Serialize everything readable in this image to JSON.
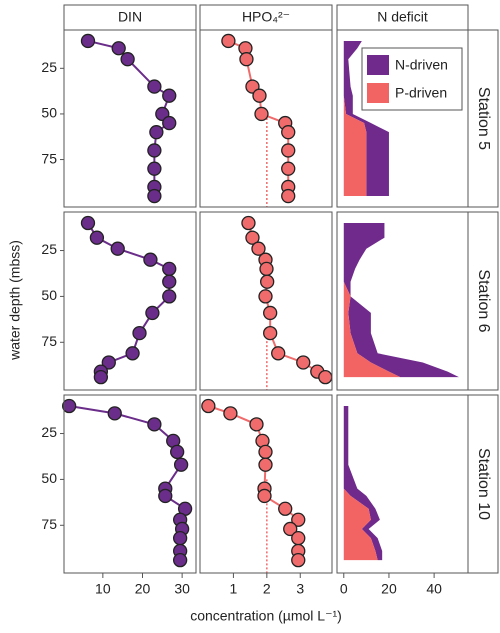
{
  "chart_data": {
    "type": "profile",
    "x_label": "concentration (µmol L⁻¹)",
    "y_label": "water depth (mbss)",
    "ylim": [
      4,
      101
    ],
    "yticks": [
      25,
      50,
      75
    ],
    "y_inverted": true,
    "columns": [
      {
        "title": "DIN",
        "xlim": [
          0.2,
          33.5
        ],
        "xticks": [
          10,
          20,
          30
        ],
        "color": "#6b2d8a"
      },
      {
        "title": "HPO₄²⁻",
        "xlim": [
          0,
          3.95
        ],
        "xticks": [
          1,
          2,
          3
        ],
        "color": "#f06b6b",
        "ref_x": 2
      },
      {
        "title": "N deficit",
        "xlim": [
          -3,
          55
        ],
        "xticks": [
          0,
          20,
          40
        ],
        "legend": [
          {
            "name": "N-driven",
            "color": "#6f2a8c"
          },
          {
            "name": "P-driven",
            "color": "#f26464"
          }
        ]
      }
    ],
    "stations": [
      {
        "name": "Station 5",
        "depth": [
          10,
          14,
          20,
          35,
          40,
          50,
          55,
          60,
          70,
          80,
          90,
          95
        ],
        "profiles": [
          [
            6.25,
            14,
            16.25,
            23,
            26.75,
            25,
            26.75,
            23.5,
            23,
            23,
            23,
            23
          ],
          [
            0.85,
            1.36,
            1.39,
            1.57,
            1.78,
            1.84,
            2.55,
            2.64,
            2.64,
            2.64,
            2.64,
            2.64
          ]
        ],
        "ref_from": 50,
        "p_driven": [
          0,
          0,
          0,
          0,
          0,
          1,
          9,
          10,
          10,
          10,
          10,
          10
        ],
        "n_driven": [
          8,
          6,
          2,
          3,
          4,
          3,
          3,
          10,
          10,
          10,
          10,
          10
        ]
      },
      {
        "name": "Station 6",
        "depth": [
          10,
          18,
          24,
          30,
          35,
          42,
          50,
          59,
          70,
          81,
          86,
          91,
          94
        ],
        "profiles": [
          [
            6.25,
            8.5,
            13.75,
            22,
            26.75,
            26.75,
            26.75,
            22.5,
            19.25,
            17.5,
            11.5,
            9.5,
            9.5
          ],
          [
            1.45,
            1.57,
            1.75,
            1.96,
            1.99,
            2.01,
            1.96,
            2.1,
            2.1,
            2.34,
            3.09,
            3.51,
            3.75
          ]
        ],
        "ref_from": 70,
        "p_driven": [
          0,
          0,
          0,
          0,
          0,
          0,
          3,
          2,
          3,
          6,
          12,
          20,
          25
        ],
        "n_driven": [
          18,
          18,
          10,
          7,
          5,
          3,
          0,
          10,
          9,
          9,
          23,
          26,
          26
        ]
      },
      {
        "name": "Station 10",
        "depth": [
          10,
          14,
          20,
          29,
          35,
          42,
          55,
          59,
          66,
          72,
          77,
          82,
          89,
          94
        ],
        "profiles": [
          [
            1.5,
            13,
            23,
            27.75,
            28.75,
            29.75,
            25.75,
            25.75,
            30.75,
            29.5,
            30,
            29.5,
            29.5,
            29.5
          ],
          [
            0.25,
            0.91,
            1.69,
            1.87,
            1.96,
            1.96,
            1.93,
            1.93,
            2.55,
            2.94,
            2.7,
            2.94,
            2.94,
            2.94
          ]
        ],
        "ref_from": 50,
        "p_driven": [
          0,
          0,
          0,
          0,
          0,
          0,
          0,
          3,
          11,
          12,
          8,
          12,
          14,
          15
        ],
        "n_driven": [
          2,
          2,
          2,
          2,
          2,
          2,
          6,
          7,
          3,
          4,
          3,
          3,
          3,
          2
        ]
      }
    ]
  }
}
